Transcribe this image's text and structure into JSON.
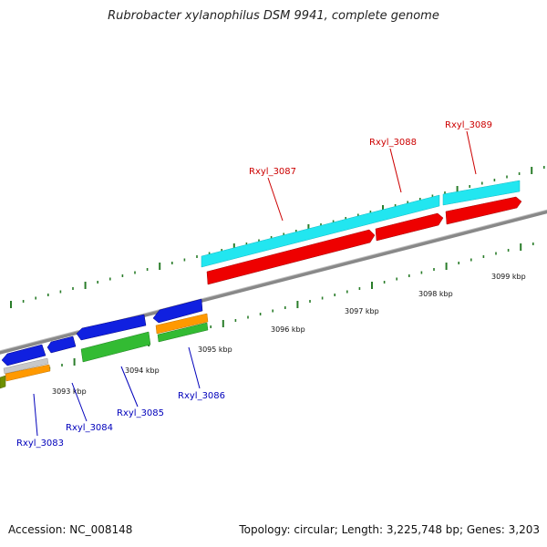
{
  "title": "Rubrobacter xylanophilus DSM 9941, complete genome",
  "footer": {
    "accession": "Accession: NC_008148",
    "summary": "Topology: circular; Length: 3,225,748 bp; Genes: 3,203"
  },
  "colors": {
    "backbone": "#808080",
    "tick": "#2a7d2a",
    "forward_label": "#cc0000",
    "reverse_label": "#0000bb",
    "cyan": "#22e6f0",
    "red": "#ee0000",
    "blue": "#1020e0",
    "green": "#33bb33",
    "orange": "#ff9900",
    "olive": "#6e8f00",
    "grey": "#c0c0c0"
  },
  "scale_labels": [
    "3093 kbp",
    "3094 kbp",
    "3095 kbp",
    "3096 kbp",
    "3097 kbp",
    "3098 kbp",
    "3099 kbp"
  ],
  "gene_labels": {
    "forward": [
      "Rxyl_3087",
      "Rxyl_3088",
      "Rxyl_3089"
    ],
    "reverse": [
      "Rxyl_3083",
      "Rxyl_3084",
      "Rxyl_3085",
      "Rxyl_3086"
    ]
  }
}
